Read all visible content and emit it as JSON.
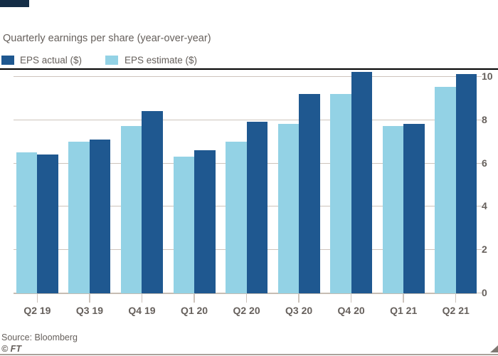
{
  "header": {
    "title": "Quarterly earnings per share (year-over-year)"
  },
  "legend": {
    "items": [
      {
        "key": "actual",
        "label": "EPS actual ($)",
        "color": "#1F5890"
      },
      {
        "key": "estimate",
        "label": "EPS estimate ($)",
        "color": "#93D2E5"
      }
    ],
    "position": "top-left"
  },
  "chart_data": {
    "type": "bar",
    "title": "Quarterly earnings per share (year-over-year)",
    "categories": [
      "Q2 19",
      "Q3 19",
      "Q4 19",
      "Q1 20",
      "Q2 20",
      "Q3 20",
      "Q4 20",
      "Q1 21",
      "Q2 21"
    ],
    "series": [
      {
        "name": "EPS estimate ($)",
        "key": "estimate",
        "color": "#93D2E5",
        "values": [
          6.5,
          7.0,
          7.7,
          6.3,
          7.0,
          7.8,
          9.2,
          7.7,
          9.5
        ]
      },
      {
        "name": "EPS actual ($)",
        "key": "actual",
        "color": "#1F5890",
        "values": [
          6.4,
          7.1,
          8.4,
          6.6,
          7.9,
          9.2,
          10.2,
          7.8,
          10.1
        ]
      }
    ],
    "group_order": [
      "estimate",
      "actual"
    ],
    "ylabel": "",
    "xlabel": "",
    "ylim": [
      0,
      10
    ],
    "yticks": [
      0,
      2,
      4,
      6,
      8,
      10
    ],
    "y_axis_side": "right",
    "grid": "horizontal",
    "legend_position": "top-left"
  },
  "footer": {
    "source": "Source: Bloomberg",
    "credit": "© FT"
  },
  "colors": {
    "text": "#66605C",
    "gridline": "#CDC4BC",
    "baseline": "#C6BDB3",
    "top_rule": "#000000",
    "bottom_rule": "#A9A29B",
    "brand_tab": "#142D46",
    "corner_triangle": "#7E7872",
    "background": "#FFFFFF"
  }
}
